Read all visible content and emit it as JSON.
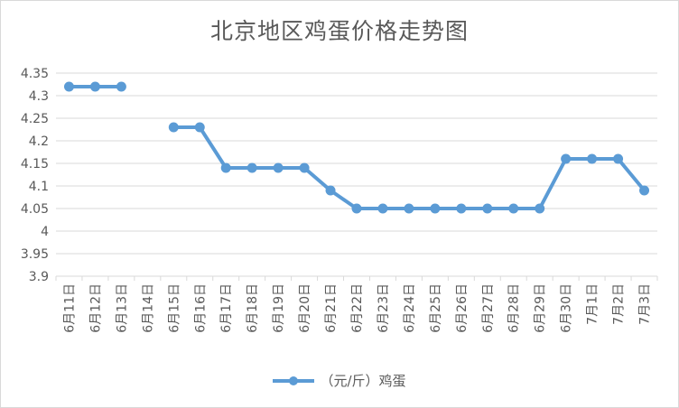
{
  "chart_data": {
    "type": "line",
    "title": "北京地区鸡蛋价格走势图",
    "xlabel": "",
    "ylabel": "",
    "ylim": [
      3.9,
      4.35
    ],
    "yticks": [
      "4.35",
      "4.3",
      "4.25",
      "4.2",
      "4.15",
      "4.1",
      "4.05",
      "4",
      "3.95",
      "3.9"
    ],
    "categories": [
      "6月11日",
      "6月12日",
      "6月13日",
      "6月14日",
      "6月15日",
      "6月16日",
      "6月17日",
      "6月18日",
      "6月19日",
      "6月20日",
      "6月21日",
      "6月22日",
      "6月23日",
      "6月24日",
      "6月25日",
      "6月26日",
      "6月27日",
      "6月28日",
      "6月29日",
      "6月30日",
      "7月1日",
      "7月2日",
      "7月3日"
    ],
    "series": [
      {
        "name": "（元/斤）鸡蛋",
        "values": [
          4.32,
          4.32,
          4.32,
          null,
          4.23,
          4.23,
          4.14,
          4.14,
          4.14,
          4.14,
          4.09,
          4.05,
          4.05,
          4.05,
          4.05,
          4.05,
          4.05,
          4.05,
          4.05,
          4.16,
          4.16,
          4.16,
          4.09
        ]
      }
    ],
    "grid": true,
    "legend_position": "bottom",
    "colors": {
      "series": "#5b9bd5",
      "grid": "#d9d9d9",
      "text": "#595959"
    }
  }
}
